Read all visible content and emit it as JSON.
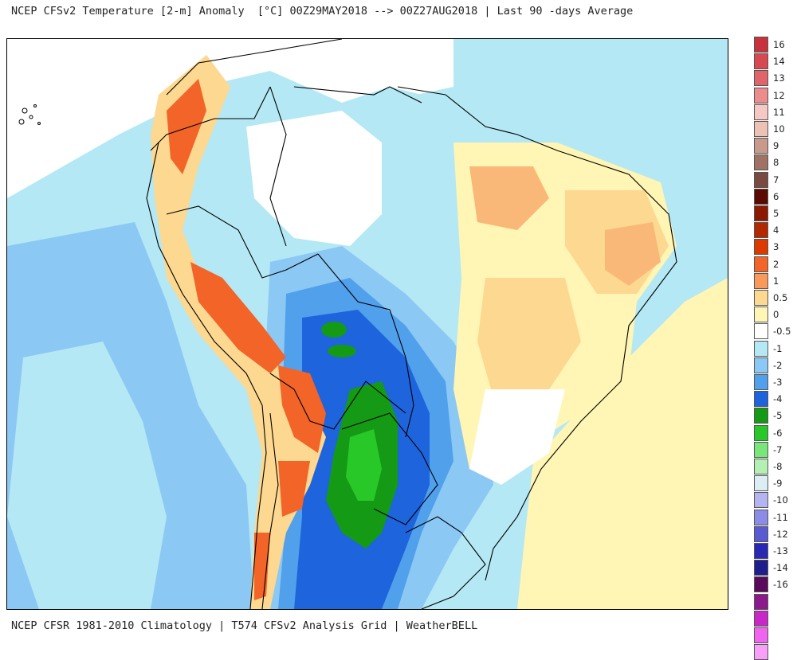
{
  "header": {
    "title": "NCEP CFSv2 Temperature [2-m] Anomaly  [°C] 00Z29MAY2018 --> 00Z27AUG2018 | Last 90 -days Average"
  },
  "footer": {
    "text": "NCEP CFSR 1981-2010 Climatology | T574 CFSv2 Analysis Grid | WeatherBELL"
  },
  "legend": {
    "levels": [
      {
        "label": "16",
        "color": "#c8323c"
      },
      {
        "label": "14",
        "color": "#d84850"
      },
      {
        "label": "13",
        "color": "#e0646a"
      },
      {
        "label": "12",
        "color": "#ec8c8c"
      },
      {
        "label": "11",
        "color": "#f6c8c4"
      },
      {
        "label": "10",
        "color": "#ecc2b4"
      },
      {
        "label": "9",
        "color": "#c89a8c"
      },
      {
        "label": "8",
        "color": "#a07264"
      },
      {
        "label": "7",
        "color": "#7a4a40"
      },
      {
        "label": "6",
        "color": "#5a0a00"
      },
      {
        "label": "5",
        "color": "#8c1a00"
      },
      {
        "label": "4",
        "color": "#b42800"
      },
      {
        "label": "3",
        "color": "#dc3a00"
      },
      {
        "label": "2",
        "color": "#f26428"
      },
      {
        "label": "1",
        "color": "#fa9a5a"
      },
      {
        "label": "0.5",
        "color": "#fdd890"
      },
      {
        "label": "0",
        "color": "#fff5b4"
      },
      {
        "label": "-0.5",
        "color": "#ffffff"
      },
      {
        "label": "-1",
        "color": "#b4e8f4"
      },
      {
        "label": "-2",
        "color": "#8cc8f4"
      },
      {
        "label": "-3",
        "color": "#50a0ec"
      },
      {
        "label": "-4",
        "color": "#1e64dc"
      },
      {
        "label": "-5",
        "color": "#149a14"
      },
      {
        "label": "-6",
        "color": "#28c828"
      },
      {
        "label": "-7",
        "color": "#78e678"
      },
      {
        "label": "-8",
        "color": "#b4f0b4"
      },
      {
        "label": "-9",
        "color": "#dceef4"
      },
      {
        "label": "-10",
        "color": "#b4b4f0"
      },
      {
        "label": "-11",
        "color": "#8c8ce6"
      },
      {
        "label": "-12",
        "color": "#5a5ad2"
      },
      {
        "label": "-13",
        "color": "#2828b4"
      },
      {
        "label": "-14",
        "color": "#1e1e8c"
      },
      {
        "label": "-16",
        "color": "#5a0a5a"
      },
      {
        "label": "",
        "color": "#8c1a8c"
      },
      {
        "label": "",
        "color": "#c828c8"
      },
      {
        "label": "",
        "color": "#f064f0"
      },
      {
        "label": "",
        "color": "#f8a0f8"
      }
    ]
  },
  "map": {
    "palette": {
      "ocean_cool": "#b4e8f4",
      "cool_1": "#8cc8f4",
      "cool_2": "#50a0ec",
      "cool_3": "#1e64dc",
      "green_1": "#149a14",
      "green_2": "#28c828",
      "warm_0": "#fff5b4",
      "warm_05": "#fdd890",
      "warm_1": "#fab878",
      "warm_2": "#f26428",
      "border": "#000000"
    }
  }
}
